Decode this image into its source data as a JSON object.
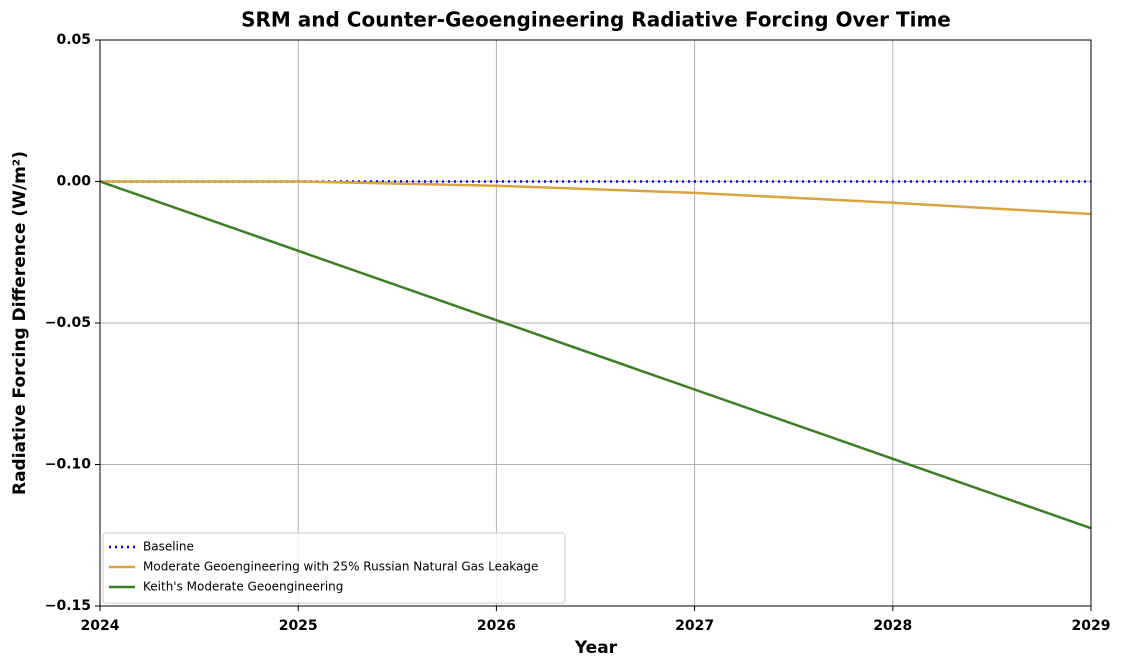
{
  "chart_data": {
    "type": "line",
    "title": "SRM and Counter-Geoengineering Radiative Forcing Over Time",
    "xlabel": "Year",
    "ylabel": "Radiative Forcing Difference (W/m²)",
    "x": [
      2024,
      2025,
      2026,
      2027,
      2028,
      2029
    ],
    "series": [
      {
        "name": "Baseline",
        "color": "#0000ff",
        "linestyle": "dotted",
        "values": [
          0,
          0,
          0,
          0,
          0,
          0
        ]
      },
      {
        "name": "Moderate Geoengineering with 25% Russian Natural Gas Leakage",
        "color": "#daa540",
        "linestyle": "solid",
        "values": [
          0,
          0,
          -0.0015,
          -0.004,
          -0.0075,
          -0.0115
        ]
      },
      {
        "name": "Keith's Moderate Geoengineering",
        "color": "#3b7f25",
        "linestyle": "solid",
        "values": [
          0,
          -0.0245,
          -0.049,
          -0.0735,
          -0.098,
          -0.1225
        ]
      }
    ],
    "xlim": [
      2024,
      2029
    ],
    "xticks": [
      2024,
      2025,
      2026,
      2027,
      2028,
      2029
    ],
    "ylim": [
      -0.15,
      0.05
    ],
    "yticks": [
      {
        "value": -0.15,
        "label": "−0.15"
      },
      {
        "value": -0.1,
        "label": "−0.10"
      },
      {
        "value": -0.05,
        "label": "−0.05"
      },
      {
        "value": 0,
        "label": "0.00"
      },
      0.05
    ],
    "grid": true,
    "legend": "lower left"
  }
}
